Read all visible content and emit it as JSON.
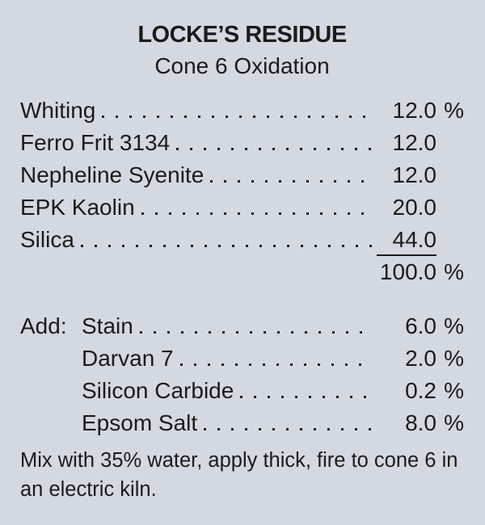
{
  "card": {
    "title": "LOCKE’S RESIDUE",
    "subtitle": "Cone 6 Oxidation",
    "ingredients": [
      {
        "label": "Whiting",
        "value": "12.0",
        "unit": "%",
        "underline": false
      },
      {
        "label": "Ferro Frit 3134",
        "value": "12.0",
        "unit": "",
        "underline": false
      },
      {
        "label": "Nepheline Syenite",
        "value": "12.0",
        "unit": "",
        "underline": false
      },
      {
        "label": "EPK Kaolin",
        "value": "20.0",
        "unit": "",
        "underline": false
      },
      {
        "label": "Silica",
        "value": "44.0",
        "unit": "",
        "underline": true
      }
    ],
    "total": {
      "value": "100.0",
      "unit": "%"
    },
    "additions_label": "Add:",
    "additions": [
      {
        "label": "Stain",
        "value": "6.0",
        "unit": "%"
      },
      {
        "label": "Darvan 7",
        "value": "2.0",
        "unit": "%"
      },
      {
        "label": "Silicon Carbide",
        "value": "0.2",
        "unit": "%"
      },
      {
        "label": "Epsom Salt",
        "value": "8.0",
        "unit": "%"
      }
    ],
    "note": "Mix with 35% water, apply thick, fire to cone 6 in an electric kiln.",
    "colors": {
      "background": "#d4d8e0",
      "ink": "#1b1b1b"
    }
  }
}
